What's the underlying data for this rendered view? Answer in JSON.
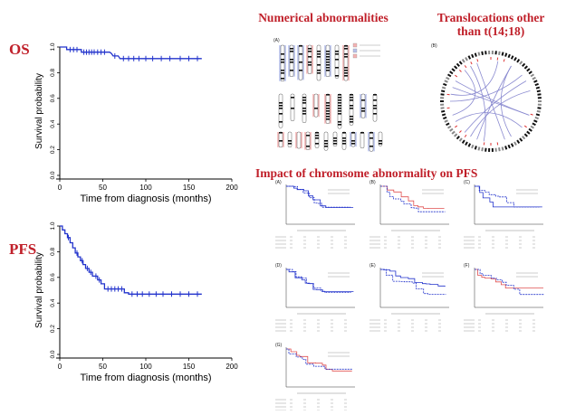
{
  "labels": {
    "os": "OS",
    "pfs": "PFS",
    "numerical": "Numerical abnormalities",
    "translocations_line1": "Translocations other",
    "translocations_line2": "than t(14;18)",
    "impact": "Impact of chromsome abnormality on PFS"
  },
  "colors": {
    "title_red": "#c0202a",
    "curve_blue": "#2233cc",
    "curve_red": "#e05050"
  },
  "chart_data": [
    {
      "type": "line",
      "name_on_chart": "OS",
      "xlabel": "Time from diagnosis (months)",
      "ylabel": "Survival probability",
      "xlim": [
        0,
        200
      ],
      "ylim": [
        0,
        1.0
      ],
      "xticks": [
        "0",
        "50",
        "100",
        "150",
        "200"
      ],
      "yticks": [
        "0.0",
        "0.2",
        "0.4",
        "0.6",
        "0.8",
        "1.0"
      ],
      "step_points": [
        [
          0,
          1.0
        ],
        [
          8,
          1.0
        ],
        [
          8,
          0.98
        ],
        [
          25,
          0.98
        ],
        [
          25,
          0.96
        ],
        [
          58,
          0.96
        ],
        [
          60,
          0.95
        ],
        [
          62,
          0.93
        ],
        [
          68,
          0.93
        ],
        [
          70,
          0.91
        ],
        [
          165,
          0.91
        ]
      ],
      "censors": [
        [
          12,
          0.98
        ],
        [
          16,
          0.98
        ],
        [
          20,
          0.98
        ],
        [
          28,
          0.96
        ],
        [
          31,
          0.96
        ],
        [
          34,
          0.96
        ],
        [
          37,
          0.96
        ],
        [
          40,
          0.96
        ],
        [
          44,
          0.96
        ],
        [
          48,
          0.96
        ],
        [
          52,
          0.96
        ],
        [
          64,
          0.93
        ],
        [
          74,
          0.91
        ],
        [
          80,
          0.91
        ],
        [
          86,
          0.91
        ],
        [
          92,
          0.91
        ],
        [
          100,
          0.91
        ],
        [
          108,
          0.91
        ],
        [
          118,
          0.91
        ],
        [
          128,
          0.91
        ],
        [
          140,
          0.91
        ],
        [
          150,
          0.91
        ],
        [
          160,
          0.91
        ]
      ]
    },
    {
      "type": "line",
      "name_on_chart": "PFS",
      "xlabel": "Time from diagnosis (months)",
      "ylabel": "Survival probability",
      "xlim": [
        0,
        200
      ],
      "ylim": [
        0,
        1.0
      ],
      "xticks": [
        "0",
        "50",
        "100",
        "150",
        "200"
      ],
      "yticks": [
        "0.0",
        "0.2",
        "0.4",
        "0.6",
        "0.8",
        "1.0"
      ],
      "step_points": [
        [
          0,
          1.0
        ],
        [
          3,
          1.0
        ],
        [
          3,
          0.97
        ],
        [
          6,
          0.97
        ],
        [
          6,
          0.94
        ],
        [
          9,
          0.94
        ],
        [
          9,
          0.91
        ],
        [
          12,
          0.91
        ],
        [
          12,
          0.87
        ],
        [
          15,
          0.87
        ],
        [
          15,
          0.83
        ],
        [
          18,
          0.83
        ],
        [
          18,
          0.79
        ],
        [
          21,
          0.79
        ],
        [
          21,
          0.76
        ],
        [
          24,
          0.76
        ],
        [
          24,
          0.73
        ],
        [
          27,
          0.73
        ],
        [
          27,
          0.7
        ],
        [
          30,
          0.7
        ],
        [
          30,
          0.67
        ],
        [
          34,
          0.67
        ],
        [
          34,
          0.64
        ],
        [
          38,
          0.64
        ],
        [
          38,
          0.61
        ],
        [
          44,
          0.61
        ],
        [
          44,
          0.58
        ],
        [
          48,
          0.58
        ],
        [
          48,
          0.55
        ],
        [
          52,
          0.55
        ],
        [
          52,
          0.51
        ],
        [
          75,
          0.51
        ],
        [
          75,
          0.48
        ],
        [
          80,
          0.48
        ],
        [
          80,
          0.47
        ],
        [
          165,
          0.47
        ]
      ],
      "censors": [
        [
          10,
          0.91
        ],
        [
          20,
          0.79
        ],
        [
          26,
          0.73
        ],
        [
          32,
          0.67
        ],
        [
          36,
          0.64
        ],
        [
          42,
          0.61
        ],
        [
          46,
          0.58
        ],
        [
          56,
          0.51
        ],
        [
          60,
          0.51
        ],
        [
          64,
          0.51
        ],
        [
          68,
          0.51
        ],
        [
          72,
          0.51
        ],
        [
          84,
          0.47
        ],
        [
          90,
          0.47
        ],
        [
          96,
          0.47
        ],
        [
          104,
          0.47
        ],
        [
          112,
          0.47
        ],
        [
          120,
          0.47
        ],
        [
          130,
          0.47
        ],
        [
          140,
          0.47
        ],
        [
          150,
          0.47
        ],
        [
          160,
          0.47
        ]
      ]
    }
  ],
  "mini_panels": [
    {
      "letter": "(A)"
    },
    {
      "letter": "(B)"
    },
    {
      "letter": "(C)"
    },
    {
      "letter": "(D)"
    },
    {
      "letter": "(E)"
    },
    {
      "letter": "(F)"
    },
    {
      "letter": "(G)"
    }
  ],
  "karyotype": {
    "letter": "(A)"
  },
  "circos": {
    "letter": "(B)"
  }
}
